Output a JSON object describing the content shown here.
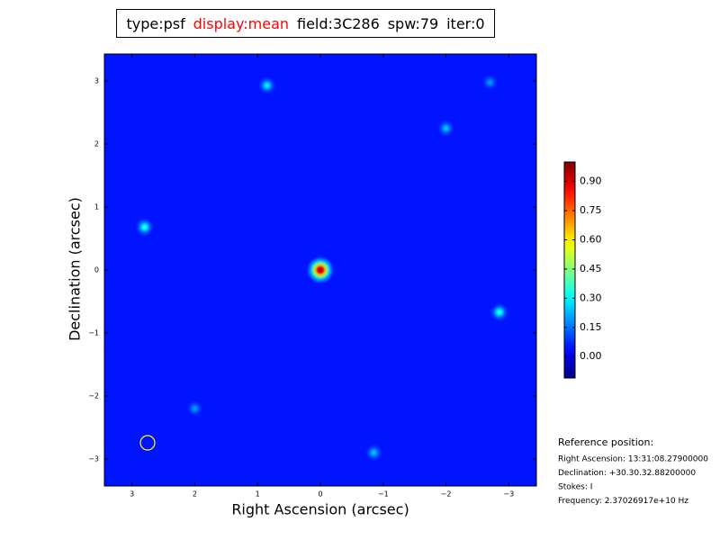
{
  "chart_data": {
    "type": "image",
    "title_parts": [
      {
        "text": "type:psf",
        "color": "#000000"
      },
      {
        "text": "display:mean",
        "color": "#ff0000"
      },
      {
        "text": "field:3C286",
        "color": "#000000"
      },
      {
        "text": "spw:79",
        "color": "#000000"
      },
      {
        "text": "iter:0",
        "color": "#000000"
      }
    ],
    "xlabel": "Right Ascension (arcsec)",
    "ylabel": "Declination (arcsec)",
    "xlim": [
      3.44,
      -3.44
    ],
    "ylim": [
      -3.43,
      3.43
    ],
    "xticks": [
      3,
      2,
      1,
      0,
      {
        "value": -1,
        "label": "−1"
      },
      {
        "value": -2,
        "label": "−2"
      },
      {
        "value": -3,
        "label": "−3"
      }
    ],
    "yticks": [
      {
        "value": -3,
        "label": "−3"
      },
      {
        "value": -2,
        "label": "−2"
      },
      {
        "value": -1,
        "label": "−1"
      },
      0,
      1,
      2,
      3
    ],
    "background_value": 0.05,
    "peaks": {
      "x": [
        0,
        2.8,
        -2.85,
        0.85,
        -2.0,
        -0.85,
        2.0,
        -2.7
      ],
      "y": [
        0,
        0.68,
        -0.67,
        2.93,
        2.25,
        -2.9,
        -2.2,
        2.98
      ],
      "values": [
        1.0,
        0.35,
        0.35,
        0.3,
        0.25,
        0.25,
        0.2,
        0.2
      ]
    },
    "colorbar": {
      "clim": [
        -0.11,
        1.0
      ],
      "ticks": [
        {
          "value": 0,
          "label": "0.00"
        },
        {
          "value": 0.15,
          "label": "0.15"
        },
        {
          "value": 0.3,
          "label": "0.30"
        },
        {
          "value": 0.45,
          "label": "0.45"
        },
        {
          "value": 0.6,
          "label": "0.60"
        },
        {
          "value": 0.75,
          "label": "0.75"
        },
        {
          "value": 0.9,
          "label": "0.90"
        }
      ]
    },
    "reference": {
      "heading": "Reference position:",
      "lines": [
        "Right Ascension: 13:31:08.27900000",
        "Declination: +30.30.32.88200000",
        "Stokes: I",
        "Frequency: 2.37026917e+10 Hz"
      ]
    }
  }
}
